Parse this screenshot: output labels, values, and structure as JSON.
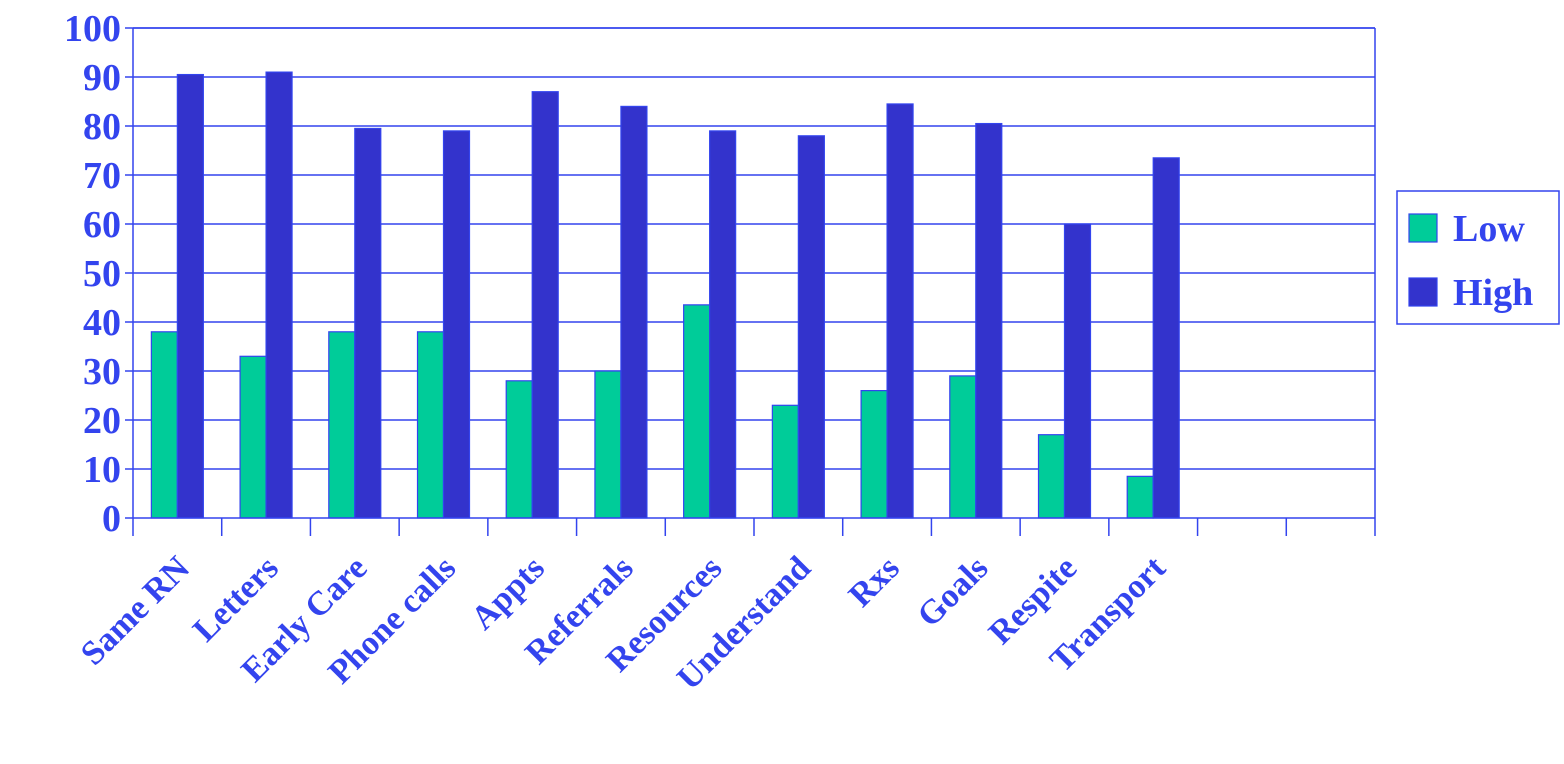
{
  "chart_data": {
    "type": "bar",
    "categories": [
      "Same RN",
      "Letters",
      "Early Care",
      "Phone calls",
      "Appts",
      "Referrals",
      "Resources",
      "Understand",
      "Rxs",
      "Goals",
      "Respite",
      "Transport",
      "",
      ""
    ],
    "series": [
      {
        "name": "Low",
        "color": "#00cc99",
        "values": [
          38,
          33,
          38,
          38,
          28,
          30,
          43.5,
          23,
          26,
          29,
          17,
          8.5,
          null,
          null
        ]
      },
      {
        "name": "High",
        "color": "#3333cc",
        "values": [
          90.5,
          91,
          79.5,
          79,
          87,
          84,
          79,
          78,
          84.5,
          80.5,
          60,
          73.5,
          null,
          null
        ]
      }
    ],
    "ylim": [
      0,
      100
    ],
    "yticks": [
      0,
      10,
      20,
      30,
      40,
      50,
      60,
      70,
      80,
      90,
      100
    ],
    "grid": true,
    "legend_position": "right",
    "colors": {
      "grid": "#3344ee",
      "axis": "#3344ee",
      "text": "#3344ee",
      "bar_edge": "#3344ee"
    }
  }
}
